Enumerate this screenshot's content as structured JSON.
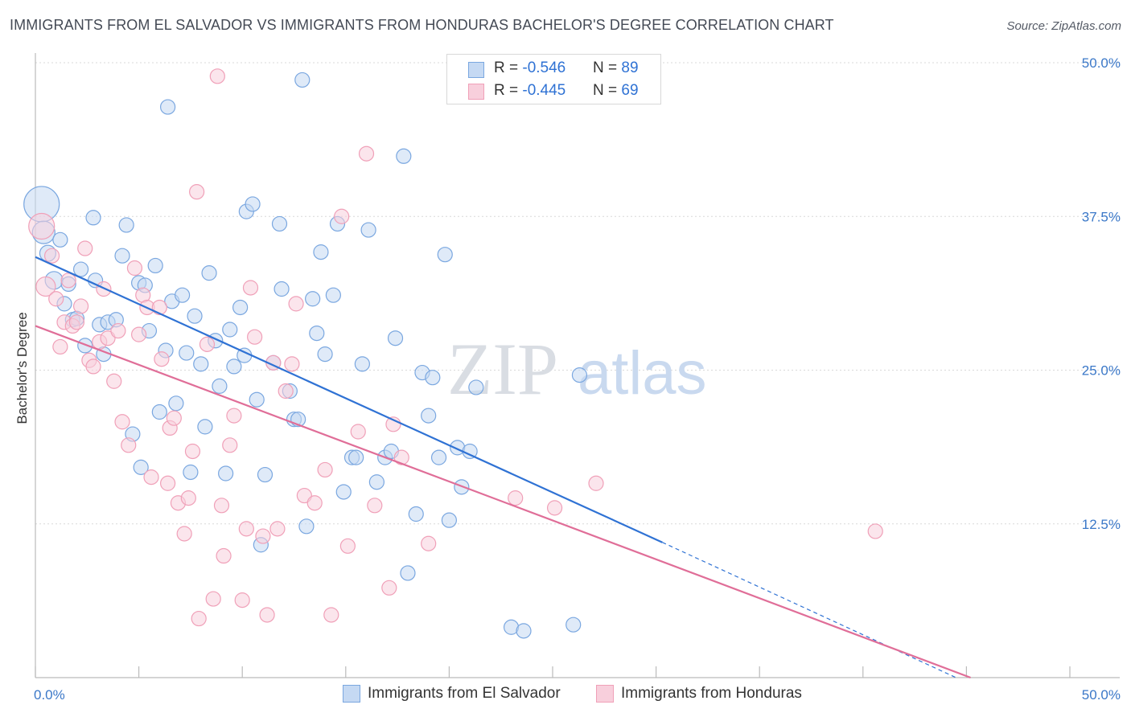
{
  "title": "IMMIGRANTS FROM EL SALVADOR VS IMMIGRANTS FROM HONDURAS BACHELOR'S DEGREE CORRELATION CHART",
  "source": "Source: ZipAtlas.com",
  "watermark": {
    "zip": "ZIP",
    "atlas": "atlas"
  },
  "chart_data": {
    "type": "scatter",
    "title": "IMMIGRANTS FROM EL SALVADOR VS IMMIGRANTS FROM HONDURAS BACHELOR'S DEGREE CORRELATION CHART",
    "xlabel": "",
    "ylabel": "Bachelor's Degree",
    "xlim": [
      0,
      50
    ],
    "ylim": [
      0,
      50
    ],
    "x_tick_labels": [
      {
        "value": 0,
        "label": "0.0%"
      },
      {
        "value": 50,
        "label": "50.0%"
      }
    ],
    "y_tick_labels": [
      {
        "value": 50,
        "label": "50.0%"
      },
      {
        "value": 37.5,
        "label": "37.5%"
      },
      {
        "value": 25,
        "label": "25.0%"
      },
      {
        "value": 12.5,
        "label": "12.5%"
      }
    ],
    "stats_legend": {
      "r_label": "R = ",
      "n_label": "N = ",
      "rows": [
        {
          "series": "Immigrants from El Salvador",
          "r": "-0.546",
          "n": "89"
        },
        {
          "series": "Immigrants from Honduras",
          "r": "-0.445",
          "n": "69"
        }
      ]
    },
    "series": [
      {
        "name": "Immigrants from El Salvador",
        "color": "#7aa7e0",
        "fill": "#c5d9f3",
        "line_color": "#2f72d4",
        "trend": {
          "x0": 0,
          "y0": 34.2,
          "x1": 30.3,
          "y1": 11.0,
          "dash_to_x": 44.5,
          "dash_to_y": 0
        },
        "points": [
          [
            0.3,
            38.5,
            22
          ],
          [
            0.4,
            36.2,
            14
          ],
          [
            0.6,
            34.5,
            10
          ],
          [
            0.9,
            32.3,
            11
          ],
          [
            1.2,
            35.6,
            9
          ],
          [
            1.4,
            30.4,
            9
          ],
          [
            1.6,
            32.0,
            9
          ],
          [
            1.8,
            29.1,
            9
          ],
          [
            2.0,
            29.2,
            9
          ],
          [
            2.2,
            33.2,
            9
          ],
          [
            2.4,
            27.0,
            9
          ],
          [
            2.8,
            37.4,
            9
          ],
          [
            2.9,
            32.3,
            9
          ],
          [
            3.1,
            28.7,
            9
          ],
          [
            3.3,
            26.3,
            9
          ],
          [
            3.5,
            28.9,
            9
          ],
          [
            3.9,
            29.1,
            9
          ],
          [
            4.2,
            34.3,
            9
          ],
          [
            4.4,
            36.8,
            9
          ],
          [
            4.7,
            19.8,
            9
          ],
          [
            5.0,
            32.1,
            9
          ],
          [
            5.1,
            17.1,
            9
          ],
          [
            5.3,
            31.9,
            9
          ],
          [
            5.5,
            28.2,
            9
          ],
          [
            5.8,
            33.5,
            9
          ],
          [
            6.0,
            21.6,
            9
          ],
          [
            6.3,
            26.6,
            9
          ],
          [
            6.4,
            46.4,
            9
          ],
          [
            6.6,
            30.6,
            9
          ],
          [
            6.8,
            22.3,
            9
          ],
          [
            7.1,
            31.1,
            9
          ],
          [
            7.3,
            26.4,
            9
          ],
          [
            7.5,
            16.7,
            9
          ],
          [
            7.7,
            29.4,
            9
          ],
          [
            8.0,
            25.5,
            9
          ],
          [
            8.2,
            20.4,
            9
          ],
          [
            8.4,
            32.9,
            9
          ],
          [
            8.7,
            27.4,
            9
          ],
          [
            8.9,
            23.7,
            9
          ],
          [
            9.2,
            16.6,
            9
          ],
          [
            9.4,
            28.3,
            9
          ],
          [
            9.6,
            25.3,
            9
          ],
          [
            9.9,
            30.1,
            9
          ],
          [
            10.1,
            26.2,
            9
          ],
          [
            10.2,
            37.9,
            9
          ],
          [
            10.5,
            38.5,
            9
          ],
          [
            10.7,
            22.6,
            9
          ],
          [
            10.9,
            10.8,
            9
          ],
          [
            11.1,
            16.5,
            9
          ],
          [
            11.5,
            25.6,
            9
          ],
          [
            11.8,
            36.9,
            9
          ],
          [
            11.9,
            31.6,
            9
          ],
          [
            12.3,
            23.3,
            9
          ],
          [
            12.5,
            21.0,
            9
          ],
          [
            12.7,
            21.0,
            9
          ],
          [
            12.9,
            48.6,
            9
          ],
          [
            13.1,
            12.3,
            9
          ],
          [
            13.4,
            30.8,
            9
          ],
          [
            13.6,
            28.0,
            9
          ],
          [
            13.8,
            34.6,
            9
          ],
          [
            14.0,
            26.3,
            9
          ],
          [
            14.4,
            31.1,
            9
          ],
          [
            14.6,
            36.9,
            9
          ],
          [
            14.9,
            15.1,
            9
          ],
          [
            15.3,
            17.9,
            9
          ],
          [
            15.5,
            17.9,
            9
          ],
          [
            15.8,
            25.5,
            9
          ],
          [
            16.1,
            36.4,
            9
          ],
          [
            16.5,
            15.9,
            9
          ],
          [
            16.9,
            17.9,
            9
          ],
          [
            17.2,
            18.4,
            9
          ],
          [
            17.4,
            27.6,
            9
          ],
          [
            17.8,
            42.4,
            9
          ],
          [
            18.0,
            8.5,
            9
          ],
          [
            18.4,
            13.3,
            9
          ],
          [
            18.7,
            24.8,
            9
          ],
          [
            19.0,
            21.3,
            9
          ],
          [
            19.2,
            24.4,
            9
          ],
          [
            19.5,
            17.9,
            9
          ],
          [
            19.8,
            34.4,
            9
          ],
          [
            20.0,
            12.8,
            9
          ],
          [
            20.4,
            18.7,
            9
          ],
          [
            20.6,
            15.5,
            9
          ],
          [
            21.0,
            18.4,
            9
          ],
          [
            21.3,
            23.6,
            9
          ],
          [
            23.0,
            4.1,
            9
          ],
          [
            23.6,
            3.8,
            9
          ],
          [
            26.0,
            4.3,
            9
          ],
          [
            26.3,
            24.6,
            9
          ]
        ]
      },
      {
        "name": "Immigrants from Honduras",
        "color": "#f0a0b8",
        "fill": "#f8cfdc",
        "line_color": "#e06e98",
        "trend": {
          "x0": 0,
          "y0": 28.6,
          "x1": 45.2,
          "y1": 0
        },
        "points": [
          [
            0.3,
            36.7,
            16
          ],
          [
            0.5,
            31.8,
            12
          ],
          [
            0.8,
            34.3,
            9
          ],
          [
            1.0,
            30.8,
            9
          ],
          [
            1.2,
            26.9,
            9
          ],
          [
            1.4,
            28.9,
            9
          ],
          [
            1.6,
            32.3,
            9
          ],
          [
            1.8,
            28.6,
            9
          ],
          [
            2.0,
            28.9,
            9
          ],
          [
            2.2,
            30.2,
            9
          ],
          [
            2.4,
            34.9,
            9
          ],
          [
            2.6,
            25.8,
            9
          ],
          [
            2.8,
            25.3,
            9
          ],
          [
            3.1,
            27.3,
            9
          ],
          [
            3.3,
            31.6,
            9
          ],
          [
            3.5,
            27.6,
            9
          ],
          [
            3.8,
            24.1,
            9
          ],
          [
            4.0,
            28.2,
            9
          ],
          [
            4.2,
            20.8,
            9
          ],
          [
            4.5,
            18.9,
            9
          ],
          [
            4.8,
            33.3,
            9
          ],
          [
            5.0,
            27.9,
            9
          ],
          [
            5.2,
            31.1,
            9
          ],
          [
            5.4,
            30.1,
            9
          ],
          [
            5.6,
            16.3,
            9
          ],
          [
            6.0,
            30.1,
            9
          ],
          [
            6.1,
            25.9,
            9
          ],
          [
            6.4,
            15.8,
            9
          ],
          [
            6.5,
            20.3,
            9
          ],
          [
            6.7,
            21.1,
            9
          ],
          [
            6.9,
            14.2,
            9
          ],
          [
            7.2,
            11.7,
            9
          ],
          [
            7.4,
            14.6,
            9
          ],
          [
            7.6,
            18.4,
            9
          ],
          [
            7.9,
            4.8,
            9
          ],
          [
            7.8,
            39.5,
            9
          ],
          [
            8.3,
            27.1,
            9
          ],
          [
            8.6,
            6.4,
            9
          ],
          [
            8.8,
            48.9,
            9
          ],
          [
            9.0,
            14.0,
            9
          ],
          [
            9.1,
            9.9,
            9
          ],
          [
            9.4,
            18.9,
            9
          ],
          [
            9.6,
            21.3,
            9
          ],
          [
            10.0,
            6.3,
            9
          ],
          [
            10.2,
            12.1,
            9
          ],
          [
            10.4,
            31.7,
            9
          ],
          [
            10.6,
            27.7,
            9
          ],
          [
            11.0,
            11.5,
            9
          ],
          [
            11.2,
            5.1,
            9
          ],
          [
            11.5,
            25.6,
            9
          ],
          [
            11.7,
            12.1,
            9
          ],
          [
            12.1,
            23.3,
            9
          ],
          [
            12.4,
            25.5,
            9
          ],
          [
            12.6,
            30.4,
            9
          ],
          [
            13.0,
            14.8,
            9
          ],
          [
            13.5,
            14.2,
            9
          ],
          [
            14.0,
            16.9,
            9
          ],
          [
            14.3,
            5.1,
            9
          ],
          [
            14.8,
            37.5,
            9
          ],
          [
            15.1,
            10.7,
            9
          ],
          [
            15.6,
            20.0,
            9
          ],
          [
            16.0,
            42.6,
            9
          ],
          [
            16.4,
            14.0,
            9
          ],
          [
            17.1,
            7.3,
            9
          ],
          [
            17.3,
            20.6,
            9
          ],
          [
            17.7,
            17.9,
            9
          ],
          [
            19.0,
            10.9,
            9
          ],
          [
            23.2,
            14.6,
            9
          ],
          [
            25.1,
            13.8,
            9
          ],
          [
            27.1,
            15.8,
            9
          ],
          [
            40.6,
            11.9,
            9
          ]
        ]
      }
    ]
  },
  "legend": {
    "items": [
      {
        "label": "Immigrants from El Salvador"
      },
      {
        "label": "Immigrants from Honduras"
      }
    ]
  }
}
